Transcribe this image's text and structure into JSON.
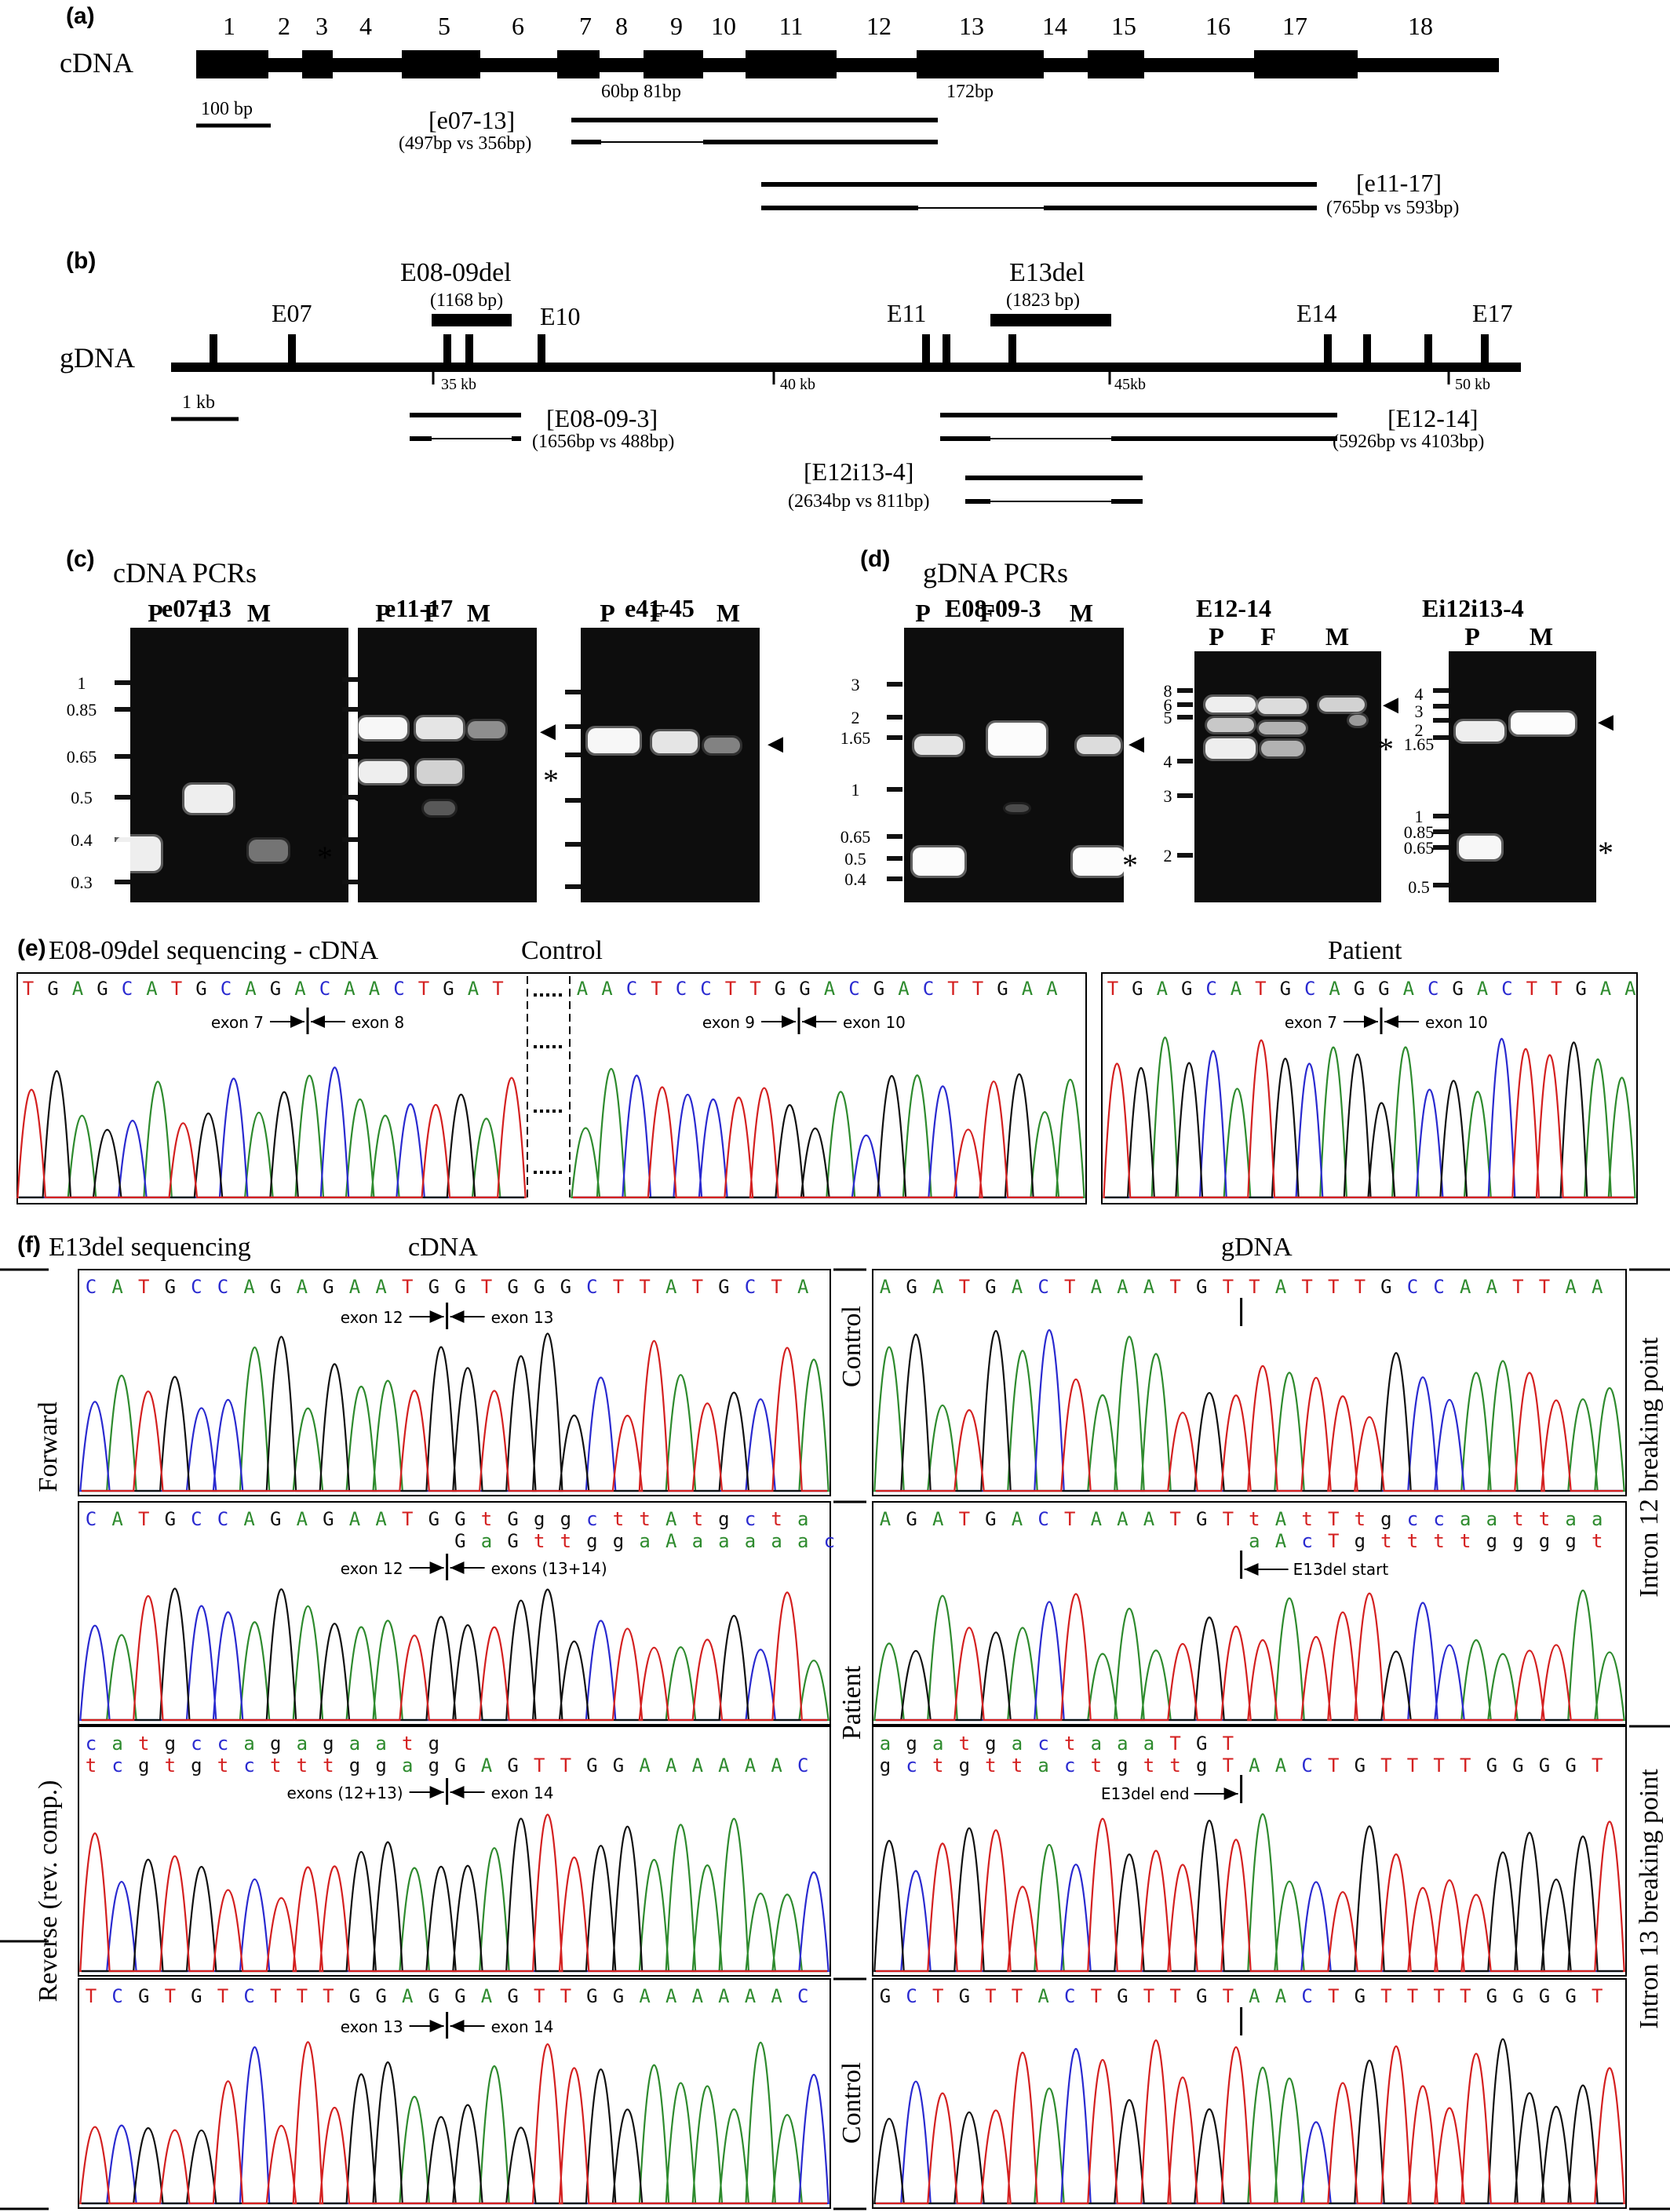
{
  "panels": {
    "a": "(a)",
    "b": "(b)",
    "c": "(c)",
    "d": "(d)",
    "e": "(e)",
    "f": "(f)"
  },
  "a": {
    "row_label": "cDNA",
    "exon_numbers": [
      "1",
      "2",
      "3",
      "4",
      "5",
      "6",
      "7",
      "8",
      "9",
      "10",
      "11",
      "12",
      "13",
      "14",
      "15",
      "16",
      "17",
      "18"
    ],
    "scale": "100 bp",
    "sizes_small": "60bp 81bp",
    "size_172": "172bp",
    "amp1_label": "[e07-13]",
    "amp1_sizes": "(497bp vs 356bp)",
    "amp2_label": "[e11-17]",
    "amp2_sizes": "(765bp vs 593bp)"
  },
  "b": {
    "row_label": "gDNA",
    "exon_labels": [
      "E07",
      "E10",
      "E11",
      "E14",
      "E17"
    ],
    "del1_title": "E08-09del",
    "del1_size": "(1168 bp)",
    "del2_title": "E13del",
    "del2_size": "(1823 bp)",
    "ticks": [
      "35 kb",
      "40 kb",
      "45kb",
      "50 kb"
    ],
    "scale": "1 kb",
    "amp1_label": "[E08-09-3]",
    "amp1_sizes": "(1656bp vs 488bp)",
    "amp2_label": "[E12-14]",
    "amp2_sizes": "(5926bp vs 4103bp)",
    "amp3_label": "[E12i13-4]",
    "amp3_sizes": "(2634bp vs 811bp)"
  },
  "c": {
    "title": "cDNA PCRs",
    "gels": [
      {
        "title": "e07-13",
        "lanes": [
          "P",
          "F",
          "M"
        ],
        "ladder": [
          "1",
          "0.85",
          "0.65",
          "0.5",
          "0.4",
          "0.3"
        ]
      },
      {
        "title": "e11-17",
        "lanes": [
          "P",
          "F",
          "M"
        ]
      },
      {
        "title": "e41-45",
        "lanes": [
          "P",
          "F",
          "M"
        ]
      }
    ]
  },
  "d": {
    "title": "gDNA PCRs",
    "gels": [
      {
        "title": "E08-09-3",
        "lanes": [
          "P",
          "F",
          "M"
        ],
        "ladder": [
          "3",
          "2",
          "1.65",
          "1",
          "0.65",
          "0.5",
          "0.4"
        ]
      },
      {
        "title": "E12-14",
        "lanes": [
          "P",
          "F",
          "M"
        ],
        "ladder": [
          "8",
          "6",
          "5",
          "4",
          "3",
          "2"
        ]
      },
      {
        "title": "Ei12i13-4",
        "lanes": [
          "P",
          "M"
        ],
        "ladder": [
          "4",
          "3",
          "2",
          "1.65",
          "1",
          "0.85",
          "0.65",
          "0.5"
        ]
      }
    ]
  },
  "marks": {
    "arrowhead": "◀",
    "star": "*"
  },
  "e": {
    "title": "E08-09del sequencing - cDNA",
    "control_label": "Control",
    "patient_label": "Patient",
    "control_left_seq": "TGAGCATGCAGACAACTGAT",
    "control_right_seq": "AACTCCTTGGACGACTTGAA",
    "patient_seq": "TGAGCATGCAGGACGACTTGAA",
    "exon7": "exon 7",
    "exon8": "exon 8",
    "exon9": "exon 9",
    "exon10": "exon 10"
  },
  "f": {
    "title": "E13del sequencing",
    "cdna_label": "cDNA",
    "gdna_label": "gDNA",
    "forward": "Forward",
    "reverse": "Reverse (rev. comp.)",
    "control": "Control",
    "patient": "Patient",
    "intron12": "Intron 12 breaking point",
    "intron13": "Intron 13 breaking point",
    "c1_seq": "CATGCCAGAGAATGGTGGGCTTATGCTA",
    "c1_left": "exon 12",
    "c1_right": "exon 13",
    "c2_seq1": "CATGCCAGAGAATGGtGggcttAtgcta",
    "c2_seq2": "GaGttggaAaaaaac",
    "c2_left": "exon 12",
    "c2_right": "exons (13+14)",
    "c3_seq1": "catgccagagaatg",
    "c3_seq2": "tcgtgtctttggagGAGTTGGAAAAAAC",
    "c3_left": "exons (12+13)",
    "c3_right": "exon 14",
    "c4_seq": "TCGTGTCTTTGGAGGAGTTGGAAAAAAC",
    "c4_left": "exon 13",
    "c4_right": "exon 14",
    "g1_seq": "AGATGACTAAATGTTATTTGCCAATTAA",
    "g2_seq1": "AGATGACTAAATGTtAtTtgccaattaa",
    "g2_seq2": "aAcTgttttggggt",
    "g2_label": "E13del start",
    "g3_seq1": "agatgactaaaTGT",
    "g3_seq2": "gctgttactgttgTAACTGTTTTGGGGT",
    "g3_label": "E13del end",
    "g4_seq": "GCTGTTACTGTTGTAACTGTTTTGGGGT"
  },
  "colors": {
    "A": "#2e8b2e",
    "C": "#2a2ad0",
    "G": "#111111",
    "T": "#d42020"
  }
}
